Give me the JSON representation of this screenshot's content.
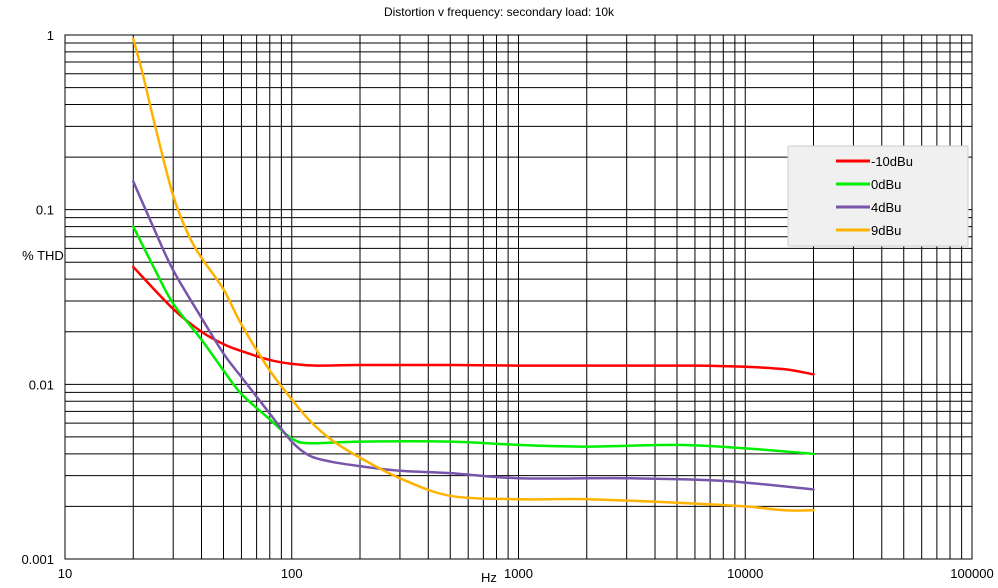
{
  "chart_data": {
    "type": "line",
    "title": "Distortion v frequency: secondary load: 10k",
    "xlabel": "Hz",
    "ylabel": "% THD",
    "xscale": "log",
    "yscale": "log",
    "xlim": [
      10,
      100000
    ],
    "ylim": [
      0.001,
      1
    ],
    "x_ticks": [
      "10",
      "100",
      "1000",
      "10000",
      "100000"
    ],
    "y_ticks": [
      "0.001",
      "0.01",
      "0.1",
      "1"
    ],
    "grid": true,
    "legend_position": "right",
    "series": [
      {
        "name": "-10dBu",
        "color": "#ff0000",
        "x": [
          20,
          30,
          40,
          50,
          60,
          80,
          100,
          130,
          200,
          500,
          1000,
          3000,
          6000,
          10000,
          15000,
          20000
        ],
        "y": [
          0.047,
          0.027,
          0.02,
          0.017,
          0.0155,
          0.0138,
          0.0131,
          0.0128,
          0.0129,
          0.0129,
          0.0128,
          0.0128,
          0.0128,
          0.0126,
          0.0122,
          0.0114
        ]
      },
      {
        "name": "0dBu",
        "color": "#00ee00",
        "x": [
          20,
          25,
          30,
          40,
          50,
          60,
          80,
          100,
          120,
          200,
          500,
          1000,
          2000,
          5000,
          10000,
          20000
        ],
        "y": [
          0.08,
          0.045,
          0.029,
          0.018,
          0.012,
          0.0088,
          0.0063,
          0.0049,
          0.0046,
          0.0047,
          0.0047,
          0.0045,
          0.0044,
          0.0045,
          0.0043,
          0.004
        ]
      },
      {
        "name": "4dBu",
        "color": "#7755aa",
        "x": [
          20,
          25,
          30,
          40,
          50,
          60,
          80,
          100,
          120,
          150,
          200,
          300,
          500,
          1000,
          3000,
          8000,
          20000
        ],
        "y": [
          0.145,
          0.075,
          0.045,
          0.024,
          0.015,
          0.011,
          0.0068,
          0.0047,
          0.0039,
          0.0036,
          0.0034,
          0.0032,
          0.0031,
          0.0029,
          0.0029,
          0.0028,
          0.0025
        ]
      },
      {
        "name": "9dBu",
        "color": "#ffb300",
        "x": [
          20,
          22,
          25,
          30,
          35,
          40,
          50,
          60,
          80,
          100,
          120,
          150,
          200,
          300,
          500,
          1000,
          2000,
          5000,
          10000,
          15000,
          20000
        ],
        "y": [
          0.95,
          0.6,
          0.3,
          0.12,
          0.072,
          0.053,
          0.035,
          0.022,
          0.012,
          0.0082,
          0.0062,
          0.0048,
          0.0038,
          0.0029,
          0.0023,
          0.0022,
          0.0022,
          0.0021,
          0.002,
          0.0019,
          0.0019
        ]
      }
    ]
  }
}
